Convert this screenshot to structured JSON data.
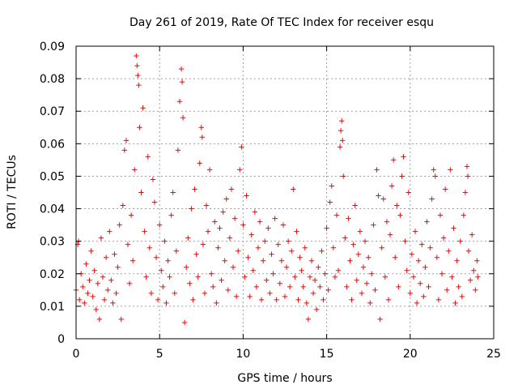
{
  "chart_data": {
    "type": "scatter",
    "title": "Day 261 of 2019, Rate Of TEC Index for receiver esqu",
    "xlabel": "GPS time / hours",
    "ylabel": "ROTI / TECUs",
    "xlim": [
      0,
      25
    ],
    "ylim": [
      0,
      0.09
    ],
    "xticks": [
      0,
      5,
      10,
      15,
      20,
      25
    ],
    "xtick_labels": [
      "0",
      "5",
      "10",
      "15",
      "20",
      "25"
    ],
    "yticks": [
      0,
      0.01,
      0.02,
      0.03,
      0.04,
      0.05,
      0.06,
      0.07,
      0.08,
      0.09
    ],
    "ytick_labels": [
      "0",
      "0.01",
      "0.02",
      "0.03",
      "0.04",
      "0.05",
      "0.06",
      "0.07",
      "0.08",
      "0.09"
    ],
    "grid": true,
    "marker": "+",
    "color": "#ff0000",
    "series": [
      {
        "name": "ROTI",
        "points": [
          [
            0.0,
            0.015
          ],
          [
            0.1,
            0.029
          ],
          [
            0.15,
            0.03
          ],
          [
            0.2,
            0.012
          ],
          [
            0.3,
            0.02
          ],
          [
            0.4,
            0.016
          ],
          [
            0.5,
            0.011
          ],
          [
            0.6,
            0.023
          ],
          [
            0.7,
            0.014
          ],
          [
            0.8,
            0.018
          ],
          [
            0.9,
            0.027
          ],
          [
            1.0,
            0.013
          ],
          [
            1.1,
            0.021
          ],
          [
            1.2,
            0.009
          ],
          [
            1.3,
            0.017
          ],
          [
            1.4,
            0.006
          ],
          [
            1.5,
            0.031
          ],
          [
            1.6,
            0.019
          ],
          [
            1.7,
            0.012
          ],
          [
            1.8,
            0.025
          ],
          [
            1.9,
            0.015
          ],
          [
            2.0,
            0.033
          ],
          [
            2.1,
            0.018
          ],
          [
            2.2,
            0.011
          ],
          [
            2.3,
            0.026
          ],
          [
            2.4,
            0.014
          ],
          [
            2.5,
            0.022
          ],
          [
            2.6,
            0.035
          ],
          [
            2.7,
            0.006
          ],
          [
            2.8,
            0.041
          ],
          [
            2.9,
            0.058
          ],
          [
            3.0,
            0.061
          ],
          [
            3.1,
            0.029
          ],
          [
            3.2,
            0.017
          ],
          [
            3.3,
            0.038
          ],
          [
            3.4,
            0.024
          ],
          [
            3.5,
            0.052
          ],
          [
            3.6,
            0.087
          ],
          [
            3.65,
            0.084
          ],
          [
            3.7,
            0.081
          ],
          [
            3.75,
            0.078
          ],
          [
            3.8,
            0.065
          ],
          [
            3.9,
            0.045
          ],
          [
            4.0,
            0.071
          ],
          [
            4.1,
            0.033
          ],
          [
            4.2,
            0.019
          ],
          [
            4.3,
            0.056
          ],
          [
            4.4,
            0.028
          ],
          [
            4.5,
            0.014
          ],
          [
            4.6,
            0.049
          ],
          [
            4.7,
            0.042
          ],
          [
            4.8,
            0.025
          ],
          [
            4.9,
            0.012
          ],
          [
            5.0,
            0.035
          ],
          [
            5.1,
            0.021
          ],
          [
            5.2,
            0.016
          ],
          [
            5.3,
            0.03
          ],
          [
            5.4,
            0.011
          ],
          [
            5.5,
            0.024
          ],
          [
            5.6,
            0.019
          ],
          [
            5.7,
            0.038
          ],
          [
            5.8,
            0.045
          ],
          [
            5.9,
            0.014
          ],
          [
            6.0,
            0.027
          ],
          [
            6.1,
            0.058
          ],
          [
            6.2,
            0.073
          ],
          [
            6.3,
            0.083
          ],
          [
            6.35,
            0.079
          ],
          [
            6.4,
            0.068
          ],
          [
            6.5,
            0.005
          ],
          [
            6.6,
            0.022
          ],
          [
            6.7,
            0.031
          ],
          [
            6.8,
            0.017
          ],
          [
            6.9,
            0.04
          ],
          [
            7.0,
            0.012
          ],
          [
            7.1,
            0.046
          ],
          [
            7.2,
            0.026
          ],
          [
            7.3,
            0.019
          ],
          [
            7.4,
            0.054
          ],
          [
            7.5,
            0.065
          ],
          [
            7.55,
            0.062
          ],
          [
            7.6,
            0.029
          ],
          [
            7.7,
            0.014
          ],
          [
            7.8,
            0.041
          ],
          [
            7.9,
            0.033
          ],
          [
            8.0,
            0.052
          ],
          [
            8.1,
            0.02
          ],
          [
            8.2,
            0.016
          ],
          [
            8.3,
            0.036
          ],
          [
            8.4,
            0.011
          ],
          [
            8.5,
            0.028
          ],
          [
            8.6,
            0.034
          ],
          [
            8.7,
            0.018
          ],
          [
            8.8,
            0.039
          ],
          [
            8.9,
            0.024
          ],
          [
            9.0,
            0.043
          ],
          [
            9.1,
            0.015
          ],
          [
            9.2,
            0.031
          ],
          [
            9.3,
            0.046
          ],
          [
            9.4,
            0.022
          ],
          [
            9.5,
            0.037
          ],
          [
            9.6,
            0.013
          ],
          [
            9.7,
            0.027
          ],
          [
            9.8,
            0.052
          ],
          [
            9.9,
            0.059
          ],
          [
            10.0,
            0.035
          ],
          [
            10.1,
            0.019
          ],
          [
            10.2,
            0.044
          ],
          [
            10.3,
            0.025
          ],
          [
            10.4,
            0.013
          ],
          [
            10.5,
            0.032
          ],
          [
            10.6,
            0.021
          ],
          [
            10.7,
            0.039
          ],
          [
            10.8,
            0.016
          ],
          [
            10.9,
            0.028
          ],
          [
            11.0,
            0.036
          ],
          [
            11.1,
            0.012
          ],
          [
            11.2,
            0.024
          ],
          [
            11.3,
            0.03
          ],
          [
            11.4,
            0.018
          ],
          [
            11.5,
            0.034
          ],
          [
            11.6,
            0.014
          ],
          [
            11.7,
            0.026
          ],
          [
            11.8,
            0.02
          ],
          [
            11.9,
            0.037
          ],
          [
            12.0,
            0.012
          ],
          [
            12.1,
            0.029
          ],
          [
            12.2,
            0.017
          ],
          [
            12.3,
            0.024
          ],
          [
            12.4,
            0.035
          ],
          [
            12.5,
            0.013
          ],
          [
            12.6,
            0.022
          ],
          [
            12.7,
            0.03
          ],
          [
            12.8,
            0.016
          ],
          [
            12.9,
            0.027
          ],
          [
            13.0,
            0.046
          ],
          [
            13.1,
            0.019
          ],
          [
            13.2,
            0.033
          ],
          [
            13.3,
            0.012
          ],
          [
            13.4,
            0.025
          ],
          [
            13.5,
            0.021
          ],
          [
            13.6,
            0.016
          ],
          [
            13.7,
            0.028
          ],
          [
            13.8,
            0.011
          ],
          [
            13.9,
            0.006
          ],
          [
            14.0,
            0.019
          ],
          [
            14.1,
            0.024
          ],
          [
            14.2,
            0.014
          ],
          [
            14.3,
            0.018
          ],
          [
            14.4,
            0.009
          ],
          [
            14.5,
            0.022
          ],
          [
            14.6,
            0.016
          ],
          [
            14.7,
            0.027
          ],
          [
            14.8,
            0.012
          ],
          [
            14.9,
            0.02
          ],
          [
            15.0,
            0.034
          ],
          [
            15.1,
            0.015
          ],
          [
            15.2,
            0.042
          ],
          [
            15.3,
            0.047
          ],
          [
            15.4,
            0.028
          ],
          [
            15.5,
            0.019
          ],
          [
            15.6,
            0.038
          ],
          [
            15.7,
            0.021
          ],
          [
            15.8,
            0.059
          ],
          [
            15.85,
            0.064
          ],
          [
            15.9,
            0.067
          ],
          [
            15.95,
            0.061
          ],
          [
            16.0,
            0.05
          ],
          [
            16.1,
            0.031
          ],
          [
            16.2,
            0.016
          ],
          [
            16.3,
            0.037
          ],
          [
            16.4,
            0.024
          ],
          [
            16.5,
            0.012
          ],
          [
            16.6,
            0.029
          ],
          [
            16.7,
            0.041
          ],
          [
            16.8,
            0.018
          ],
          [
            16.9,
            0.026
          ],
          [
            17.0,
            0.033
          ],
          [
            17.1,
            0.014
          ],
          [
            17.2,
            0.022
          ],
          [
            17.3,
            0.03
          ],
          [
            17.4,
            0.017
          ],
          [
            17.5,
            0.025
          ],
          [
            17.6,
            0.011
          ],
          [
            17.7,
            0.02
          ],
          [
            17.8,
            0.035
          ],
          [
            17.9,
            0.015
          ],
          [
            18.0,
            0.052
          ],
          [
            18.1,
            0.044
          ],
          [
            18.2,
            0.006
          ],
          [
            18.3,
            0.028
          ],
          [
            18.4,
            0.043
          ],
          [
            18.5,
            0.019
          ],
          [
            18.6,
            0.036
          ],
          [
            18.7,
            0.012
          ],
          [
            18.8,
            0.032
          ],
          [
            18.9,
            0.047
          ],
          [
            19.0,
            0.055
          ],
          [
            19.1,
            0.025
          ],
          [
            19.2,
            0.041
          ],
          [
            19.3,
            0.016
          ],
          [
            19.4,
            0.038
          ],
          [
            19.5,
            0.05
          ],
          [
            19.6,
            0.056
          ],
          [
            19.7,
            0.03
          ],
          [
            19.8,
            0.021
          ],
          [
            19.9,
            0.045
          ],
          [
            20.0,
            0.014
          ],
          [
            20.1,
            0.026
          ],
          [
            20.2,
            0.019
          ],
          [
            20.3,
            0.033
          ],
          [
            20.4,
            0.011
          ],
          [
            20.5,
            0.024
          ],
          [
            20.6,
            0.017
          ],
          [
            20.7,
            0.029
          ],
          [
            20.8,
            0.013
          ],
          [
            20.9,
            0.022
          ],
          [
            21.0,
            0.036
          ],
          [
            21.1,
            0.016
          ],
          [
            21.2,
            0.028
          ],
          [
            21.3,
            0.043
          ],
          [
            21.4,
            0.052
          ],
          [
            21.5,
            0.05
          ],
          [
            21.6,
            0.025
          ],
          [
            21.7,
            0.012
          ],
          [
            21.8,
            0.038
          ],
          [
            21.9,
            0.02
          ],
          [
            22.0,
            0.031
          ],
          [
            22.1,
            0.046
          ],
          [
            22.2,
            0.015
          ],
          [
            22.3,
            0.027
          ],
          [
            22.4,
            0.052
          ],
          [
            22.5,
            0.019
          ],
          [
            22.6,
            0.034
          ],
          [
            22.7,
            0.011
          ],
          [
            22.8,
            0.024
          ],
          [
            22.9,
            0.016
          ],
          [
            23.0,
            0.03
          ],
          [
            23.1,
            0.013
          ],
          [
            23.2,
            0.038
          ],
          [
            23.3,
            0.045
          ],
          [
            23.4,
            0.053
          ],
          [
            23.45,
            0.05
          ],
          [
            23.5,
            0.027
          ],
          [
            23.6,
            0.018
          ],
          [
            23.7,
            0.032
          ],
          [
            23.8,
            0.021
          ],
          [
            23.9,
            0.015
          ],
          [
            24.0,
            0.024
          ],
          [
            24.05,
            0.019
          ]
        ]
      }
    ]
  }
}
